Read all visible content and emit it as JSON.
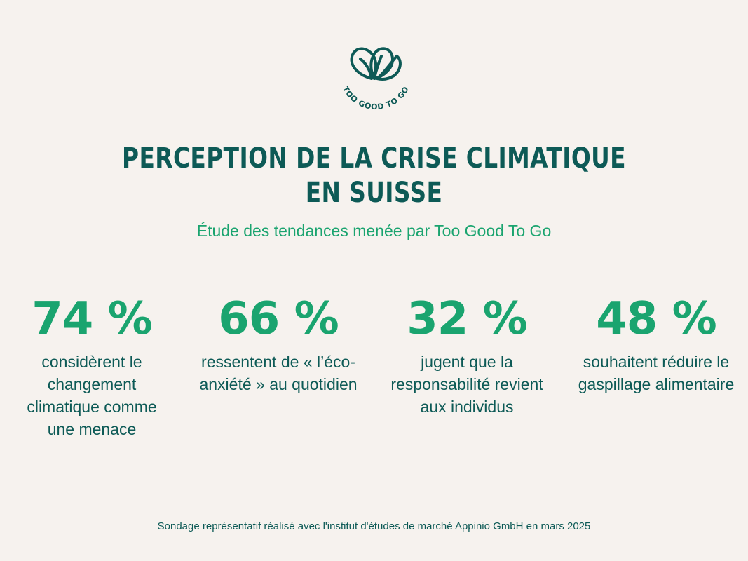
{
  "brand": {
    "logo_text": "TOO GOOD TO GO",
    "colors": {
      "primary_dark": "#0d5a56",
      "accent_green": "#1aa46f",
      "background": "#f6f2ee"
    }
  },
  "header": {
    "title_line1": "PERCEPTION DE LA CRISE CLIMATIQUE",
    "title_line2": "EN SUISSE",
    "subtitle": "Étude des tendances menée par Too Good To Go"
  },
  "stats": [
    {
      "value": "74 %",
      "label": "considèrent le changement climatique comme une menace"
    },
    {
      "value": "66 %",
      "label": "ressentent de « l’éco-anxiété » au quotidien"
    },
    {
      "value": "32 %",
      "label": "jugent que la responsabilité revient aux individus"
    },
    {
      "value": "48 %",
      "label": "souhaitent réduire le gaspillage alimentaire"
    }
  ],
  "footer": {
    "note": "Sondage représentatif réalisé avec l'institut d'études de marché Appinio GmbH en mars 2025"
  }
}
